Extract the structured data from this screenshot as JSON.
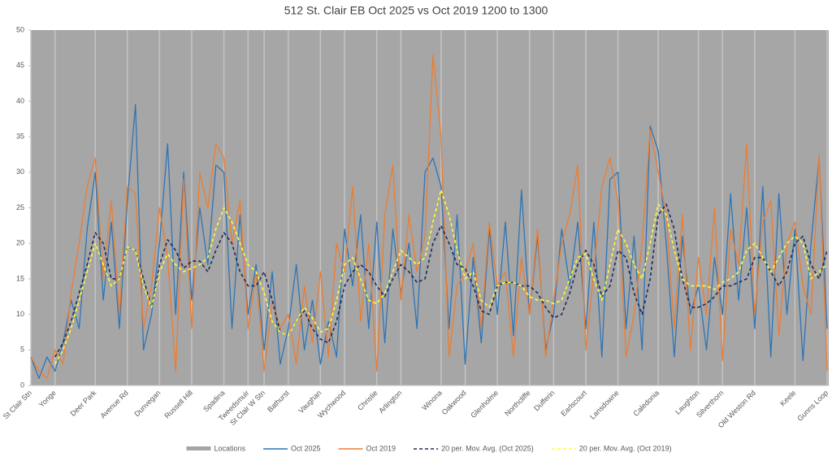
{
  "chart_data": {
    "type": "line",
    "title": "512 St. Clair EB Oct 2025 vs Oct 2019 1200 to 1300",
    "plot_background": "#a6a6a6",
    "categories": [
      "St Clair Stn",
      null,
      null,
      "Yonge",
      null,
      null,
      null,
      null,
      "Deer Park",
      null,
      null,
      null,
      "Avenue Rd",
      null,
      null,
      null,
      "Dunvegan",
      null,
      null,
      null,
      "Russell Hill",
      null,
      null,
      null,
      "Spadina",
      null,
      null,
      "Tweedsmuir",
      null,
      "St Clair W Stn",
      null,
      null,
      "Bathurst",
      null,
      null,
      null,
      "Vaughan",
      null,
      null,
      "Wychwood",
      null,
      null,
      null,
      "Christie",
      null,
      null,
      "Arlington",
      null,
      null,
      null,
      null,
      "Winona",
      null,
      null,
      "Oakwood",
      null,
      null,
      null,
      "Glenholme",
      null,
      null,
      null,
      "Northcliffe",
      null,
      null,
      "Dufferin",
      null,
      null,
      null,
      "Earlscourt",
      null,
      null,
      null,
      "Lansdowne",
      null,
      null,
      null,
      null,
      "Caledonia",
      null,
      null,
      null,
      null,
      "Laughton",
      null,
      null,
      "Silverthorn",
      null,
      null,
      null,
      "Old Weston Rd",
      null,
      null,
      null,
      null,
      "Keele",
      null,
      null,
      null,
      "Gunns Loop"
    ],
    "ylim": [
      0,
      50
    ],
    "yticks": [
      0,
      5,
      10,
      15,
      20,
      25,
      30,
      35,
      40,
      45,
      50
    ],
    "series": [
      {
        "name": "Locations",
        "type": "bar",
        "color": "#c4c4c4",
        "legend_color": "#a5a5a5",
        "values": [
          50,
          null,
          null,
          50,
          null,
          null,
          null,
          null,
          50,
          null,
          null,
          null,
          50,
          null,
          null,
          null,
          50,
          null,
          null,
          null,
          50,
          null,
          null,
          null,
          50,
          null,
          null,
          50,
          null,
          50,
          null,
          null,
          50,
          null,
          null,
          null,
          50,
          null,
          null,
          50,
          null,
          null,
          null,
          50,
          null,
          null,
          50,
          null,
          null,
          null,
          null,
          50,
          null,
          null,
          50,
          null,
          null,
          null,
          50,
          null,
          null,
          null,
          50,
          null,
          null,
          50,
          null,
          null,
          null,
          50,
          null,
          null,
          null,
          50,
          null,
          null,
          null,
          null,
          50,
          null,
          null,
          null,
          null,
          50,
          null,
          null,
          50,
          null,
          null,
          null,
          50,
          null,
          null,
          null,
          null,
          50,
          null,
          null,
          null,
          50
        ]
      },
      {
        "name": "Oct 2025",
        "type": "line",
        "color": "#2e75b6",
        "dashed": false,
        "values": [
          4,
          1,
          4,
          2,
          6,
          12,
          8,
          22,
          30,
          12,
          23,
          8,
          26,
          39.5,
          5,
          10,
          20,
          34,
          10,
          30,
          12,
          25,
          17,
          31,
          30,
          8,
          24,
          10,
          17,
          5,
          16,
          3,
          8,
          17,
          5,
          12,
          3,
          9,
          4,
          22,
          14,
          24,
          8,
          23,
          6,
          22,
          13,
          20,
          8,
          30,
          32,
          28,
          8,
          24,
          3,
          18,
          6,
          22,
          10,
          23,
          7,
          27.5,
          10,
          21,
          5,
          10,
          22,
          14,
          23,
          8,
          23,
          4,
          29,
          30,
          8,
          21,
          5,
          36.5,
          33,
          20,
          4,
          21,
          10,
          14,
          5,
          18,
          10,
          27,
          12,
          25,
          8,
          28,
          4,
          27,
          10,
          22,
          3.5,
          20,
          32,
          8
        ]
      },
      {
        "name": "Oct 2019",
        "type": "line",
        "color": "#ed7d31",
        "dashed": false,
        "values": [
          4,
          2,
          1,
          5,
          3,
          13,
          20,
          28,
          32,
          15,
          26,
          10,
          28,
          27,
          8,
          14,
          25,
          18,
          2,
          29,
          8,
          30,
          25,
          34,
          32,
          20,
          26,
          8,
          16,
          2,
          12,
          8,
          10,
          3,
          14,
          6,
          16,
          4,
          20,
          16,
          28,
          9,
          20,
          2,
          24,
          31,
          12,
          24,
          16,
          21,
          46.5,
          35,
          4,
          14,
          16,
          20,
          8,
          23,
          14,
          16,
          4,
          18,
          10,
          22,
          4,
          12,
          20,
          24,
          31,
          5,
          16,
          28,
          32,
          26,
          4,
          10,
          20,
          36,
          30,
          24,
          8,
          24,
          5,
          18,
          10,
          25,
          3.5,
          22,
          17,
          34,
          10,
          23,
          26,
          7,
          20,
          23,
          14,
          10,
          32.5,
          2
        ]
      },
      {
        "name": "20 per. Mov. Avg. (Oct 2025)",
        "type": "line",
        "color": "#1f2a5a",
        "dashed": true,
        "values": [
          null,
          null,
          null,
          4,
          6,
          9,
          13,
          17,
          21.5,
          20,
          15,
          15,
          19.5,
          19,
          15,
          11,
          17,
          20.5,
          19,
          16.5,
          17.5,
          17.5,
          16,
          19,
          21.5,
          20,
          16,
          14,
          14,
          16,
          12,
          7.5,
          7,
          9,
          10.5,
          8,
          6.5,
          6,
          9,
          14,
          16,
          17,
          16,
          14,
          12.5,
          15,
          17,
          16,
          14.5,
          15,
          20,
          22.5,
          20,
          17,
          16.5,
          14,
          10.5,
          10,
          14,
          14.5,
          14.5,
          14,
          14,
          13,
          11,
          9.5,
          10,
          13,
          17,
          19,
          17,
          12.5,
          14,
          19,
          18,
          13,
          10,
          15,
          24,
          25.5,
          22,
          15,
          11,
          11,
          11.5,
          12.5,
          14,
          14,
          14.5,
          15,
          18,
          18,
          16,
          14,
          16,
          20,
          21,
          17,
          15,
          19
        ]
      },
      {
        "name": "20 per. Mov. Avg. (Oct 2019)",
        "type": "line",
        "color": "#ffff33",
        "dashed": true,
        "values": [
          null,
          null,
          null,
          3,
          5,
          8,
          12,
          16,
          20,
          17,
          14,
          15,
          19.5,
          19,
          14,
          11,
          16,
          18.5,
          17,
          16,
          16.5,
          17,
          18,
          22,
          25,
          23,
          20,
          17,
          16,
          13,
          9,
          7.5,
          7,
          9,
          11,
          9.5,
          7.5,
          8,
          12,
          17,
          18,
          15,
          12,
          11.5,
          13,
          16,
          19,
          18,
          17,
          18,
          23,
          27.5,
          24,
          19,
          15,
          16,
          12,
          11,
          14,
          14.5,
          14.5,
          14,
          12.5,
          12,
          12,
          11.5,
          12,
          15,
          18,
          18.5,
          15,
          12,
          17,
          22,
          20,
          17,
          15,
          20,
          25.5,
          24,
          19,
          15,
          14,
          14,
          14,
          13.5,
          14.5,
          15,
          16,
          19,
          20,
          18,
          16,
          18,
          20,
          21,
          20,
          15,
          16,
          17
        ]
      }
    ]
  }
}
